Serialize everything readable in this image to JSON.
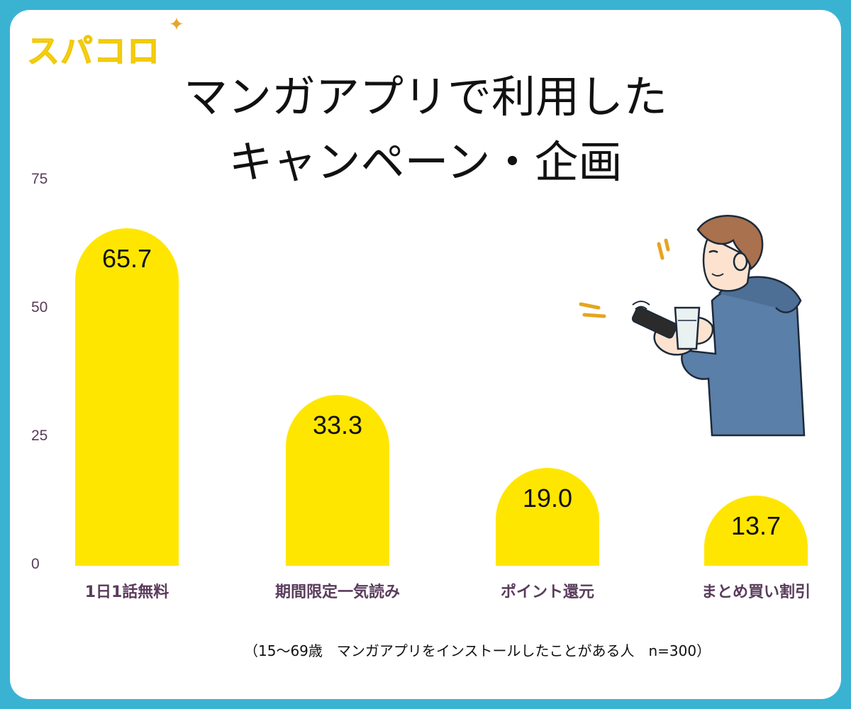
{
  "logo": {
    "text": "スパコロ",
    "spark": "✦"
  },
  "header": {
    "title_line1": "マンガアプリで利用した",
    "title_line2": "キャンペーン・企画"
  },
  "footnote": "（15〜69歳　マンガアプリをインストールしたことがある人　n=300）",
  "chart_data": {
    "type": "bar",
    "categories": [
      "1日1話無料",
      "期間限定一気読み",
      "ポイント還元",
      "まとめ買い割引"
    ],
    "values": [
      65.7,
      33.3,
      19.0,
      13.7
    ],
    "value_labels": [
      "65.7",
      "33.3",
      "19.0",
      "13.7"
    ],
    "ylim": [
      0,
      75
    ],
    "yticks": [
      0,
      25,
      50,
      75
    ],
    "ytick_labels": [
      "0",
      "25",
      "50",
      "75"
    ],
    "xlabel": "",
    "ylabel": "",
    "grid": false,
    "bar_color": "#ffe600"
  },
  "colors": {
    "border": "#3ab3d3",
    "bar": "#ffe600",
    "axis_text": "#5a3c5c",
    "logo": "#f7d11f"
  }
}
